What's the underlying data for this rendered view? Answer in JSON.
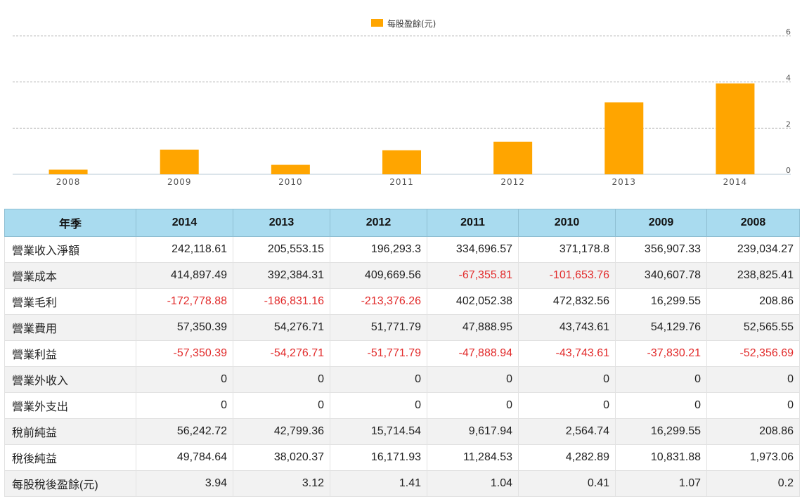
{
  "chart_data": {
    "type": "bar",
    "categories": [
      "2008",
      "2009",
      "2010",
      "2011",
      "2012",
      "2013",
      "2014"
    ],
    "series": [
      {
        "name": "每股盈餘(元)",
        "values": [
          0.2,
          1.07,
          0.41,
          1.04,
          1.41,
          3.12,
          3.94
        ],
        "color": "#ffa500"
      }
    ],
    "yticks": [
      "0",
      "2",
      "4",
      "6"
    ],
    "ylim": [
      0,
      6
    ],
    "grid": true,
    "legend_position": "top-center"
  },
  "table": {
    "header_label": "年季",
    "years": [
      "2014",
      "2013",
      "2012",
      "2011",
      "2010",
      "2009",
      "2008"
    ],
    "rows": [
      {
        "label": "營業收入淨額",
        "values": [
          "242,118.61",
          "205,553.15",
          "196,293.3",
          "334,696.57",
          "371,178.8",
          "356,907.33",
          "239,034.27"
        ]
      },
      {
        "label": "營業成本",
        "values": [
          "414,897.49",
          "392,384.31",
          "409,669.56",
          "-67,355.81",
          "-101,653.76",
          "340,607.78",
          "238,825.41"
        ]
      },
      {
        "label": "營業毛利",
        "values": [
          "-172,778.88",
          "-186,831.16",
          "-213,376.26",
          "402,052.38",
          "472,832.56",
          "16,299.55",
          "208.86"
        ]
      },
      {
        "label": "營業費用",
        "values": [
          "57,350.39",
          "54,276.71",
          "51,771.79",
          "47,888.95",
          "43,743.61",
          "54,129.76",
          "52,565.55"
        ]
      },
      {
        "label": "營業利益",
        "values": [
          "-57,350.39",
          "-54,276.71",
          "-51,771.79",
          "-47,888.94",
          "-43,743.61",
          "-37,830.21",
          "-52,356.69"
        ]
      },
      {
        "label": "營業外收入",
        "values": [
          "0",
          "0",
          "0",
          "0",
          "0",
          "0",
          "0"
        ]
      },
      {
        "label": "營業外支出",
        "values": [
          "0",
          "0",
          "0",
          "0",
          "0",
          "0",
          "0"
        ]
      },
      {
        "label": "稅前純益",
        "values": [
          "56,242.72",
          "42,799.36",
          "15,714.54",
          "9,617.94",
          "2,564.74",
          "16,299.55",
          "208.86"
        ]
      },
      {
        "label": "稅後純益",
        "values": [
          "49,784.64",
          "38,020.37",
          "16,171.93",
          "11,284.53",
          "4,282.89",
          "10,831.88",
          "1,973.06"
        ]
      },
      {
        "label": "每股稅後盈餘(元)",
        "values": [
          "3.94",
          "3.12",
          "1.41",
          "1.04",
          "0.41",
          "1.07",
          "0.2"
        ]
      }
    ]
  }
}
